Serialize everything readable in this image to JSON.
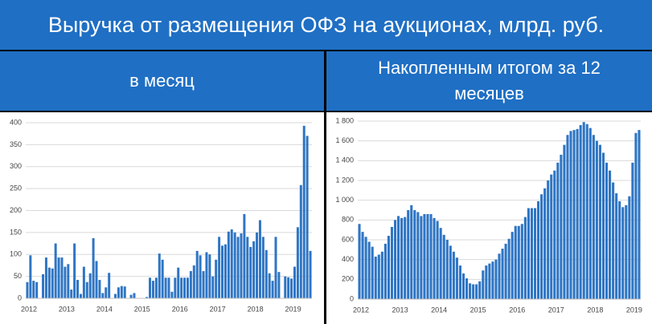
{
  "title": "Выручка от размещения ОФЗ на аукционах, млрд. руб.",
  "chart_data": [
    {
      "type": "bar",
      "title": "в месяц",
      "color": "#2e75c4",
      "grid": true,
      "ylim": [
        0,
        400
      ],
      "yticks": [
        0,
        50,
        100,
        150,
        200,
        250,
        300,
        350,
        400
      ],
      "categories": [
        "2012",
        null,
        null,
        null,
        null,
        null,
        null,
        null,
        null,
        null,
        null,
        null,
        "2013",
        null,
        null,
        null,
        null,
        null,
        null,
        null,
        null,
        null,
        null,
        null,
        "2014",
        null,
        null,
        null,
        null,
        null,
        null,
        null,
        null,
        null,
        null,
        null,
        "2015",
        null,
        null,
        null,
        null,
        null,
        null,
        null,
        null,
        null,
        null,
        null,
        "2016",
        null,
        null,
        null,
        null,
        null,
        null,
        null,
        null,
        null,
        null,
        null,
        "2017",
        null,
        null,
        null,
        null,
        null,
        null,
        null,
        null,
        null,
        null,
        null,
        "2018",
        null,
        null,
        null,
        null,
        null,
        null,
        null,
        null,
        null,
        null,
        null,
        "2019",
        null,
        null,
        null,
        null,
        null,
        null
      ],
      "values": [
        37,
        98,
        40,
        37,
        0,
        55,
        93,
        70,
        68,
        125,
        93,
        93,
        72,
        78,
        20,
        125,
        42,
        10,
        72,
        37,
        57,
        137,
        85,
        42,
        12,
        25,
        58,
        0,
        10,
        25,
        28,
        27,
        0,
        8,
        12,
        0,
        0,
        0,
        3,
        47,
        40,
        47,
        102,
        88,
        47,
        47,
        15,
        47,
        70,
        47,
        47,
        47,
        62,
        75,
        108,
        98,
        62,
        105,
        100,
        50,
        88,
        140,
        120,
        123,
        152,
        157,
        150,
        140,
        148,
        192,
        140,
        117,
        130,
        150,
        178,
        140,
        110,
        57,
        40,
        140,
        60,
        0,
        50,
        48,
        45,
        72,
        162,
        258,
        393,
        370,
        108
      ]
    },
    {
      "type": "bar",
      "title": "Накопленным итогом за 12 месяцев",
      "color": "#2e75c4",
      "grid": true,
      "ylim": [
        0,
        1800
      ],
      "yticks": [
        0,
        200,
        400,
        600,
        800,
        {
          "value": 1000,
          "label": "1 000"
        },
        {
          "value": 1200,
          "label": "1 200"
        },
        {
          "value": 1400,
          "label": "1 400"
        },
        {
          "value": 1600,
          "label": "1 600"
        },
        {
          "value": 1800,
          "label": "1 800"
        }
      ],
      "categories": [
        "2012",
        null,
        null,
        null,
        null,
        null,
        null,
        null,
        null,
        null,
        null,
        null,
        "2013",
        null,
        null,
        null,
        null,
        null,
        null,
        null,
        null,
        null,
        null,
        null,
        "2014",
        null,
        null,
        null,
        null,
        null,
        null,
        null,
        null,
        null,
        null,
        null,
        "2015",
        null,
        null,
        null,
        null,
        null,
        null,
        null,
        null,
        null,
        null,
        null,
        "2016",
        null,
        null,
        null,
        null,
        null,
        null,
        null,
        null,
        null,
        null,
        null,
        "2017",
        null,
        null,
        null,
        null,
        null,
        null,
        null,
        null,
        null,
        null,
        null,
        "2018",
        null,
        null,
        null,
        null,
        null,
        null,
        null,
        null,
        null,
        null,
        null,
        "2019",
        null,
        null
      ],
      "values": [
        760,
        680,
        630,
        580,
        530,
        430,
        450,
        480,
        560,
        640,
        730,
        800,
        840,
        820,
        830,
        900,
        950,
        900,
        880,
        840,
        860,
        860,
        860,
        820,
        790,
        720,
        650,
        600,
        540,
        480,
        420,
        340,
        260,
        210,
        160,
        150,
        150,
        180,
        290,
        340,
        360,
        380,
        400,
        460,
        510,
        560,
        610,
        680,
        740,
        740,
        760,
        830,
        920,
        920,
        920,
        990,
        1060,
        1120,
        1200,
        1260,
        1300,
        1380,
        1460,
        1560,
        1660,
        1700,
        1710,
        1720,
        1760,
        1790,
        1770,
        1730,
        1660,
        1600,
        1560,
        1480,
        1380,
        1300,
        1180,
        1070,
        990,
        930,
        950,
        1040,
        1380,
        1680,
        1710
      ]
    }
  ]
}
